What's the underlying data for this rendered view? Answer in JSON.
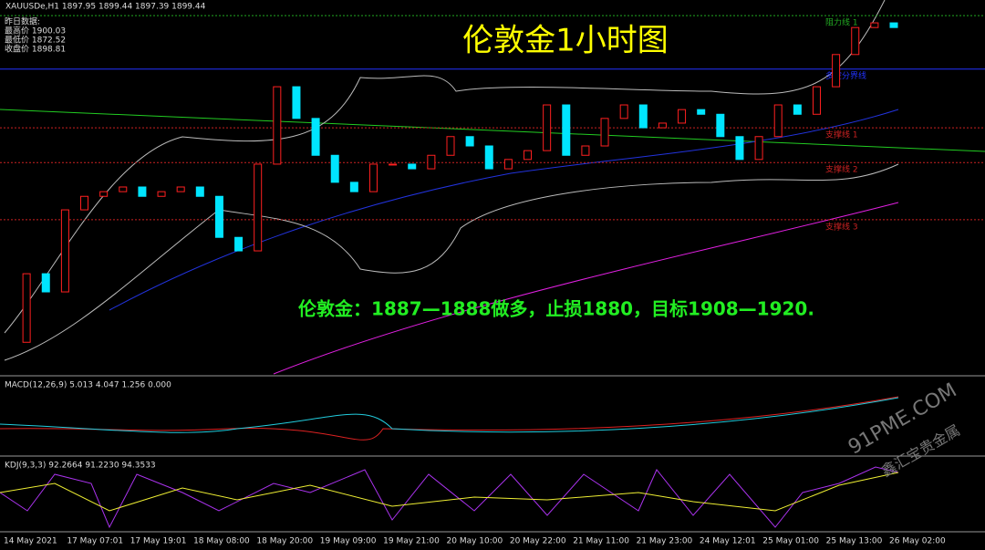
{
  "chart_data": {
    "type": "candlestick",
    "title": "伦敦金1小时图",
    "symbol_header": "XAUUSDe,H1  1897.95 1899.44 1897.39 1899.44",
    "info_lines": [
      "昨日数据:",
      "最高价 1900.03",
      "最低价 1872.52",
      "收盘价 1898.81"
    ],
    "annotation": "伦敦金：1887—1888做多，止损1880，目标1908—1920.",
    "macd_label": "MACD(12,26,9) 5.013 4.047 1.256 0.000",
    "kdj_label": "KDJ(9,3,3) 92.2664 91.2230 94.3533",
    "watermark": [
      "91PME.COM",
      "鑫汇宝贵金属"
    ],
    "x_labels": [
      "14 May 2021",
      "17 May 07:01",
      "17 May 19:01",
      "18 May 08:00",
      "18 May 20:00",
      "19 May 09:00",
      "19 May 21:00",
      "20 May 10:00",
      "20 May 22:00",
      "21 May 11:00",
      "21 May 23:00",
      "24 May 12:01",
      "25 May 01:00",
      "25 May 13:00",
      "26 May 02:00"
    ],
    "values": [
      1838.1,
      1851.3,
      1847.8,
      1863.6,
      1866.2,
      1867.1,
      1868.0,
      1866.2,
      1867.1,
      1868.0,
      1866.2,
      1858.3,
      1855.7,
      1872.4,
      1887.3,
      1881.2,
      1874.1,
      1868.9,
      1867.1,
      1872.4,
      1872.4,
      1871.5,
      1874.1,
      1877.7,
      1875.9,
      1871.5,
      1873.3,
      1875.0,
      1883.8,
      1874.1,
      1875.9,
      1881.2,
      1883.8,
      1879.4,
      1880.3,
      1882.9,
      1882.0,
      1877.7,
      1873.3,
      1877.7,
      1883.8,
      1882.0,
      1887.3,
      1893.5,
      1898.7,
      1899.6,
      1898.7
    ],
    "up_color": "#ff2020",
    "down_color": "#00e5ff",
    "ylim": [
      1832,
      1904
    ],
    "levels": [
      {
        "label": "阻力线 1",
        "value": 1901.0,
        "color": "#22aa22"
      },
      {
        "label": "多空分界线",
        "value": 1890.7,
        "color": "#2233ff"
      },
      {
        "label": "支撑线 1",
        "value": 1879.4,
        "color": "#cc2222"
      },
      {
        "label": "支撑线 2",
        "value": 1872.7,
        "color": "#cc2222"
      },
      {
        "label": "支撑线 3",
        "value": 1861.7,
        "color": "#cc2222"
      }
    ]
  }
}
